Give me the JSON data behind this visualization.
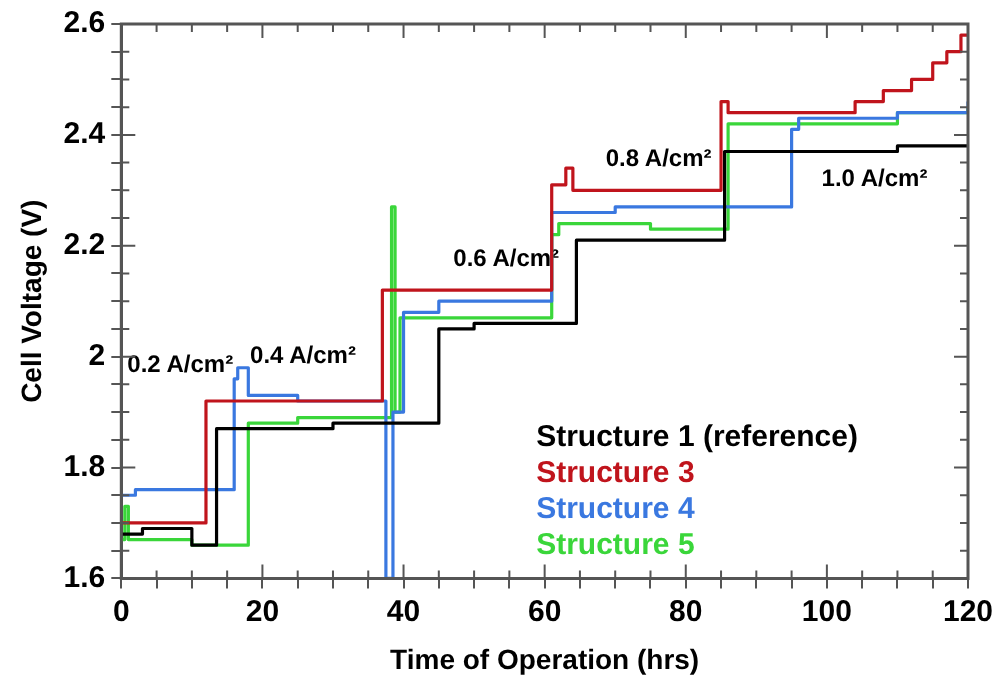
{
  "chart_data": {
    "type": "step",
    "xlabel": "Time of Operation (hrs)",
    "ylabel": "Cell Voltage (V)",
    "xlim": [
      0,
      120
    ],
    "ylim": [
      1.6,
      2.6
    ],
    "xticks": [
      0,
      {
        "value": 5,
        "label": null
      },
      {
        "value": 10,
        "label": null
      },
      {
        "value": 15,
        "label": null
      },
      20,
      {
        "value": 25,
        "label": null
      },
      {
        "value": 30,
        "label": null
      },
      {
        "value": 35,
        "label": null
      },
      40,
      {
        "value": 45,
        "label": null
      },
      {
        "value": 50,
        "label": null
      },
      {
        "value": 55,
        "label": null
      },
      60,
      {
        "value": 65,
        "label": null
      },
      {
        "value": 70,
        "label": null
      },
      {
        "value": 75,
        "label": null
      },
      80,
      {
        "value": 85,
        "label": null
      },
      {
        "value": 90,
        "label": null
      },
      {
        "value": 95,
        "label": null
      },
      100,
      {
        "value": 105,
        "label": null
      },
      {
        "value": 110,
        "label": null
      },
      {
        "value": 115,
        "label": null
      },
      120
    ],
    "yticks": [
      1.6,
      {
        "value": 1.65,
        "label": null
      },
      {
        "value": 1.7,
        "label": null
      },
      {
        "value": 1.75,
        "label": null
      },
      1.8,
      {
        "value": 1.85,
        "label": null
      },
      {
        "value": 1.9,
        "label": null
      },
      {
        "value": 1.95,
        "label": null
      },
      2,
      {
        "value": 2.05,
        "label": null
      },
      {
        "value": 2.1,
        "label": null
      },
      {
        "value": 2.15,
        "label": null
      },
      2.2,
      {
        "value": 2.25,
        "label": null
      },
      {
        "value": 2.3,
        "label": null
      },
      {
        "value": 2.35,
        "label": null
      },
      2.4,
      {
        "value": 2.45,
        "label": null
      },
      {
        "value": 2.5,
        "label": null
      },
      {
        "value": 2.55,
        "label": null
      },
      2.6
    ],
    "grid": false,
    "legend": "bottom right",
    "marker": "none",
    "line_style": "solid",
    "series": [
      {
        "name": "Structure 1 (reference)",
        "color": "#000000",
        "x": [
          0,
          3,
          10,
          13.5,
          20,
          30,
          45,
          50,
          64.5,
          75,
          85.5,
          100,
          110,
          120
        ],
        "values": [
          1.68,
          1.69,
          1.66,
          1.87,
          1.87,
          1.88,
          2.05,
          2.06,
          2.21,
          2.21,
          2.37,
          2.37,
          2.38,
          2.38
        ]
      },
      {
        "name": "Structure 3",
        "color": "#c0141c",
        "x": [
          0,
          12,
          20,
          37,
          45,
          61,
          63,
          64,
          85,
          86,
          100,
          104,
          108,
          112,
          115,
          117,
          119,
          120
        ],
        "values": [
          1.7,
          1.92,
          1.92,
          2.12,
          2.12,
          2.31,
          2.34,
          2.3,
          2.46,
          2.44,
          2.44,
          2.46,
          2.48,
          2.5,
          2.53,
          2.55,
          2.58,
          2.58
        ]
      },
      {
        "name": "Structure 4",
        "color": "#3a78e0",
        "x": [
          0,
          2,
          16,
          16.5,
          18,
          25,
          37.5,
          38.5,
          39,
          40,
          45,
          61,
          70,
          95,
          96,
          110,
          120
        ],
        "values": [
          1.75,
          1.76,
          1.96,
          1.98,
          1.93,
          1.92,
          1.6,
          1.9,
          1.9,
          2.08,
          2.1,
          2.26,
          2.27,
          2.41,
          2.43,
          2.44,
          2.46
        ]
      },
      {
        "name": "Structure 5",
        "color": "#3ad63a",
        "x": [
          0,
          0.5,
          1,
          10,
          18,
          25,
          38.3,
          38.8,
          39.5,
          50,
          61,
          62,
          75,
          86,
          90,
          110,
          120
        ],
        "values": [
          1.67,
          1.73,
          1.67,
          1.66,
          1.88,
          1.89,
          2.27,
          1.9,
          2.07,
          2.07,
          2.22,
          2.24,
          2.23,
          2.42,
          2.42,
          2.44,
          2.45
        ]
      }
    ],
    "annotations": [
      "0.2 A/cm²",
      "0.4 A/cm²",
      "0.6 A/cm²",
      "0.8 A/cm²",
      "1.0 A/cm²"
    ]
  }
}
